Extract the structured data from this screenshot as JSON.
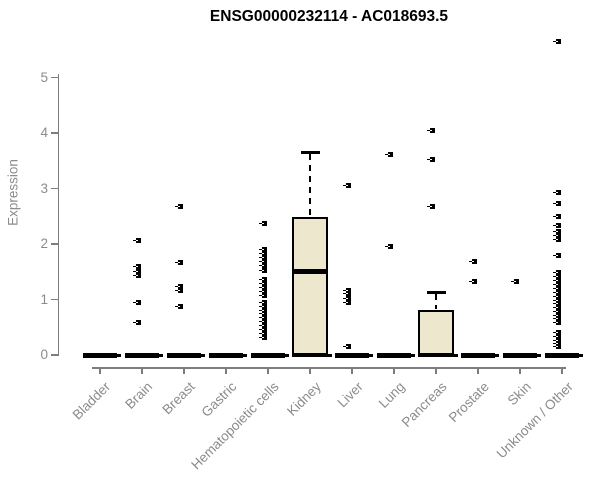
{
  "chart_data": {
    "type": "box",
    "title": "ENSG00000232114 - AC018693.5",
    "xlabel": "",
    "ylabel": "Expression",
    "ylim": [
      0,
      5
    ],
    "yticks": [
      0,
      1,
      2,
      3,
      4,
      5
    ],
    "grid": false,
    "legend": false,
    "categories": [
      "Bladder",
      "Brain",
      "Breast",
      "Gastric",
      "Hematopoietic cells",
      "Kidney",
      "Liver",
      "Lung",
      "Pancreas",
      "Prostate",
      "Skin",
      "Unknown / Other"
    ],
    "boxes": [
      {
        "label": "Bladder",
        "type": "flat",
        "median": 0,
        "outliers": []
      },
      {
        "label": "Brain",
        "type": "flat",
        "median": 0,
        "outliers": [
          2.07,
          1.59,
          1.51,
          1.44,
          0.94,
          0.58
        ]
      },
      {
        "label": "Breast",
        "type": "flat",
        "median": 0,
        "outliers": [
          2.67,
          1.66,
          1.24,
          1.17,
          0.88
        ]
      },
      {
        "label": "Gastric",
        "type": "flat",
        "median": 0,
        "outliers": []
      },
      {
        "label": "Hematopoietic cells",
        "type": "flat",
        "median": 0,
        "outliers": [
          2.37,
          1.9,
          1.83,
          1.76,
          1.69,
          1.62,
          1.52,
          1.36,
          1.29,
          1.22,
          1.15,
          1.08,
          0.95,
          0.88,
          0.81,
          0.74,
          0.67,
          0.6,
          0.53,
          0.46,
          0.39,
          0.32
        ]
      },
      {
        "label": "Kidney",
        "type": "box",
        "q1": 0,
        "median": 1.5,
        "q3": 2.48,
        "whisker_high": 3.65,
        "outliers": []
      },
      {
        "label": "Liver",
        "type": "flat",
        "median": 0,
        "outliers": [
          3.05,
          1.17,
          1.1,
          1.02,
          0.95,
          0.16
        ]
      },
      {
        "label": "Lung",
        "type": "flat",
        "median": 0,
        "outliers": [
          3.62,
          1.96
        ]
      },
      {
        "label": "Pancreas",
        "type": "box",
        "q1": 0,
        "median": 0,
        "q3": 0.81,
        "whisker_high": 1.13,
        "outliers": [
          4.05,
          3.52,
          2.68
        ]
      },
      {
        "label": "Prostate",
        "type": "flat",
        "median": 0,
        "outliers": [
          1.69,
          1.33
        ]
      },
      {
        "label": "Skin",
        "type": "flat",
        "median": 0,
        "outliers": [
          1.33
        ]
      },
      {
        "label": "Unknown / Other",
        "type": "flat",
        "median": 0,
        "outliers": [
          5.64,
          2.93,
          2.73,
          2.49,
          2.33,
          2.22,
          2.15,
          2.08,
          1.79,
          1.48,
          1.41,
          1.34,
          1.27,
          1.2,
          1.13,
          1.06,
          0.99,
          0.92,
          0.85,
          0.79,
          0.72,
          0.65,
          0.58,
          0.41,
          0.34,
          0.27,
          0.2,
          0.15
        ]
      }
    ],
    "colors": {
      "box_fill": "#ede7ce",
      "box_line": "#000000",
      "axis": "#7d7d7d",
      "tick_label": "#8b8b8b",
      "title": "#000000",
      "background": "#ffffff"
    }
  }
}
